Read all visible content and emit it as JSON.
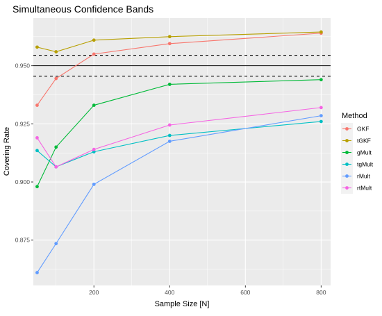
{
  "chart_data": {
    "type": "line",
    "title": "Simultaneous Confidence Bands",
    "xlabel": "Sample Size [N]",
    "ylabel": "Covering Rate",
    "xlim": [
      40,
      825
    ],
    "ylim": [
      0.8555,
      0.9705
    ],
    "x_ticks": [
      200,
      400,
      600,
      800
    ],
    "y_ticks": [
      0.875,
      0.9,
      0.925,
      0.95
    ],
    "y_tick_labels": [
      "0.875",
      "0.900",
      "0.925",
      "0.950"
    ],
    "grid": true,
    "legend": {
      "title": "Method",
      "position": "right"
    },
    "reference_lines": [
      {
        "y": 0.95,
        "style": "solid"
      },
      {
        "y": 0.9455,
        "style": "dashed"
      },
      {
        "y": 0.9545,
        "style": "dashed"
      }
    ],
    "x": [
      50,
      100,
      200,
      400,
      800
    ],
    "series": [
      {
        "name": "GKF",
        "color": "#F8766D",
        "values": [
          0.933,
          0.9445,
          0.955,
          0.9595,
          0.964
        ]
      },
      {
        "name": "tGKF",
        "color": "#B79F00",
        "values": [
          0.958,
          0.956,
          0.961,
          0.9625,
          0.9645
        ]
      },
      {
        "name": "gMult",
        "color": "#00BA38",
        "values": [
          0.898,
          0.915,
          0.933,
          0.942,
          0.944
        ]
      },
      {
        "name": "tgMult",
        "color": "#00BFC4",
        "values": [
          0.9135,
          0.9065,
          0.913,
          0.92,
          0.926
        ]
      },
      {
        "name": "rMult",
        "color": "#619CFF",
        "values": [
          0.861,
          0.8735,
          0.899,
          0.9175,
          0.9285
        ]
      },
      {
        "name": "rtMult",
        "color": "#F564E3",
        "values": [
          0.919,
          0.9065,
          0.914,
          0.9245,
          0.932
        ]
      }
    ]
  }
}
